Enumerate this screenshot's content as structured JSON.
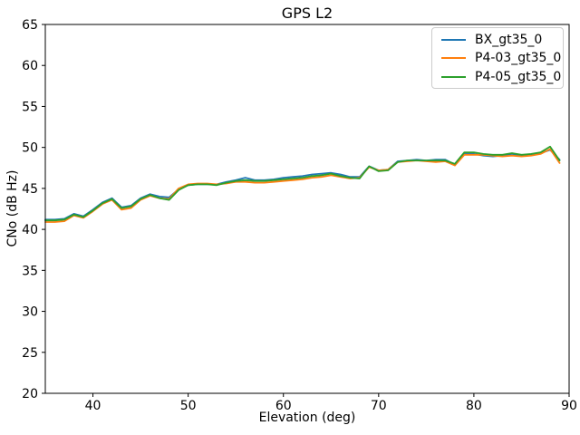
{
  "chart_data": {
    "type": "line",
    "title": "GPS L2",
    "xlabel": "Elevation (deg)",
    "ylabel": "CNo (dB Hz)",
    "xlim": [
      35,
      90
    ],
    "ylim": [
      20,
      65
    ],
    "xticks": [
      40,
      50,
      60,
      70,
      80,
      90
    ],
    "yticks": [
      20,
      25,
      30,
      35,
      40,
      45,
      50,
      55,
      60,
      65
    ],
    "grid": false,
    "legend_position": "upper right",
    "x": [
      35,
      36,
      37,
      38,
      39,
      40,
      41,
      42,
      43,
      44,
      45,
      46,
      47,
      48,
      49,
      50,
      51,
      52,
      53,
      54,
      55,
      56,
      57,
      58,
      59,
      60,
      61,
      62,
      63,
      64,
      65,
      66,
      67,
      68,
      69,
      70,
      71,
      72,
      73,
      74,
      75,
      76,
      77,
      78,
      79,
      80,
      81,
      82,
      83,
      84,
      85,
      86,
      87,
      88,
      89
    ],
    "series": [
      {
        "name": "BX_gt35_0",
        "color": "#1f77b4",
        "values": [
          41.2,
          41.2,
          41.3,
          41.9,
          41.6,
          42.4,
          43.3,
          43.8,
          42.7,
          42.9,
          43.8,
          44.3,
          44.0,
          43.9,
          44.9,
          45.4,
          45.5,
          45.5,
          45.5,
          45.8,
          46.0,
          46.3,
          46.0,
          46.0,
          46.1,
          46.3,
          46.4,
          46.5,
          46.7,
          46.8,
          46.9,
          46.7,
          46.4,
          46.4,
          47.7,
          47.2,
          47.3,
          48.3,
          48.4,
          48.5,
          48.4,
          48.5,
          48.5,
          47.9,
          49.3,
          49.2,
          49.0,
          48.9,
          49.0,
          49.2,
          49.0,
          49.1,
          49.3,
          49.7,
          48.5
        ]
      },
      {
        "name": "P4-03_gt35_0",
        "color": "#ff7f0e",
        "values": [
          40.9,
          40.9,
          41.0,
          41.7,
          41.4,
          42.2,
          43.1,
          43.6,
          42.4,
          42.6,
          43.6,
          44.1,
          43.8,
          43.7,
          45.0,
          45.5,
          45.6,
          45.6,
          45.5,
          45.6,
          45.8,
          45.8,
          45.7,
          45.7,
          45.8,
          45.9,
          46.0,
          46.1,
          46.3,
          46.4,
          46.6,
          46.4,
          46.2,
          46.3,
          47.6,
          47.2,
          47.3,
          48.2,
          48.3,
          48.4,
          48.3,
          48.2,
          48.3,
          47.8,
          49.1,
          49.1,
          49.1,
          49.0,
          48.9,
          49.0,
          48.9,
          49.0,
          49.2,
          49.8,
          48.1
        ]
      },
      {
        "name": "P4-05_gt35_0",
        "color": "#2ca02c",
        "values": [
          41.1,
          41.1,
          41.2,
          41.8,
          41.5,
          42.3,
          43.2,
          43.7,
          42.6,
          42.8,
          43.7,
          44.2,
          43.8,
          43.6,
          44.8,
          45.4,
          45.5,
          45.5,
          45.4,
          45.7,
          45.9,
          46.0,
          45.9,
          45.9,
          46.0,
          46.1,
          46.2,
          46.3,
          46.5,
          46.6,
          46.8,
          46.5,
          46.3,
          46.2,
          47.7,
          47.1,
          47.2,
          48.2,
          48.4,
          48.4,
          48.4,
          48.4,
          48.4,
          48.0,
          49.4,
          49.4,
          49.2,
          49.1,
          49.1,
          49.3,
          49.1,
          49.2,
          49.4,
          50.1,
          48.4
        ]
      }
    ]
  }
}
